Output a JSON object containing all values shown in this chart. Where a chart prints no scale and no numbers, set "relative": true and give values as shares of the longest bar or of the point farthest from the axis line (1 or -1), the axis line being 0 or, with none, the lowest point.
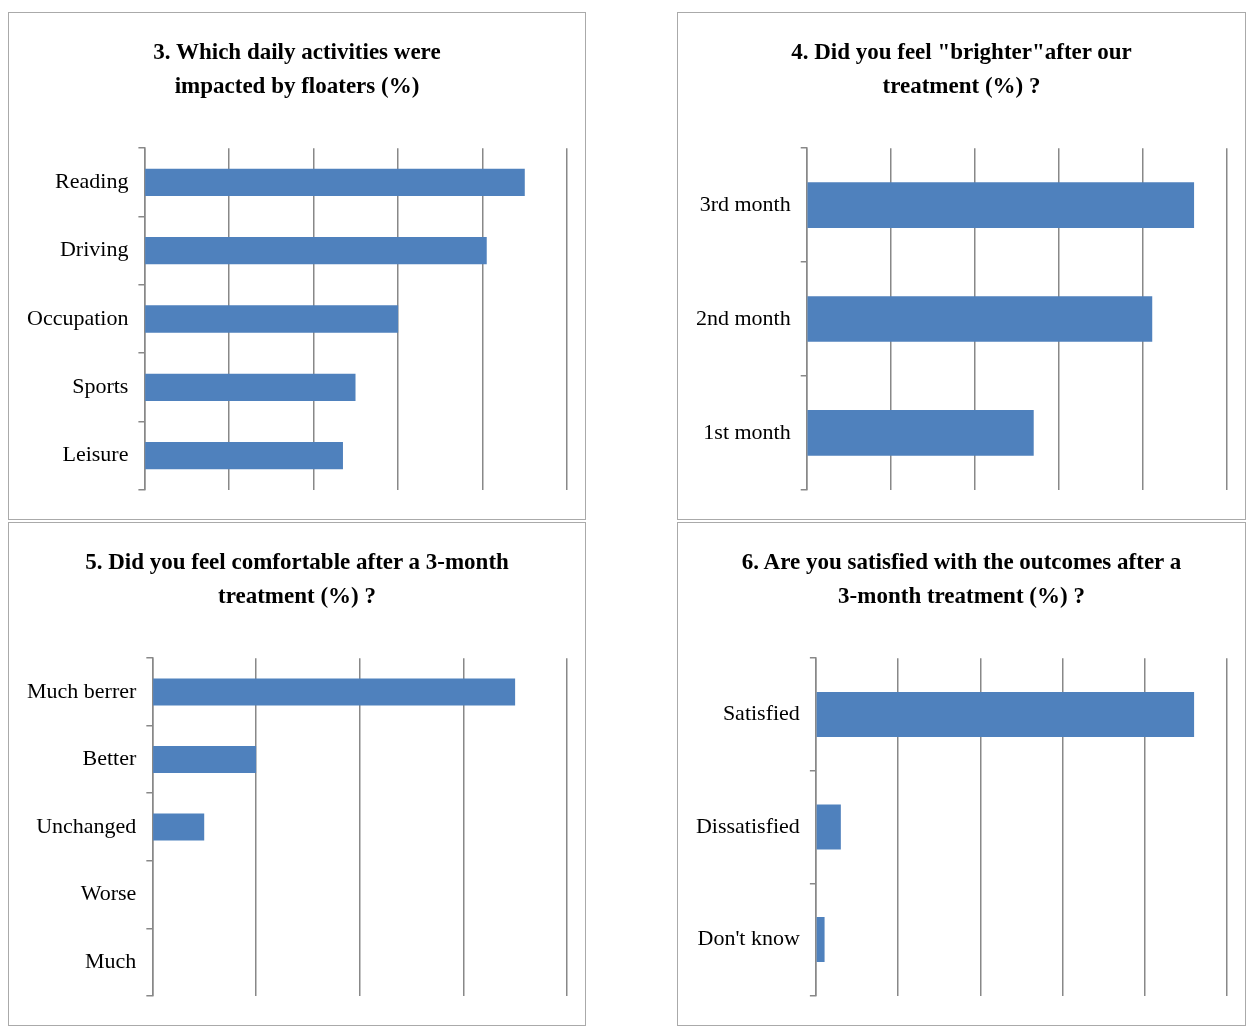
{
  "chart_data": [
    {
      "type": "bar",
      "orientation": "horizontal",
      "relative": true,
      "grid": "x",
      "title": "3. Which daily activities were impacted by floaters (%)",
      "categories": [
        "Reading",
        "Driving",
        "Occupation",
        "Sports",
        "Leisure"
      ],
      "values": [
        1,
        0.9,
        0.667,
        0.555,
        0.522
      ],
      "color": "#4f81bd"
    },
    {
      "type": "bar",
      "orientation": "horizontal",
      "relative": true,
      "grid": "x",
      "title": "4. Did you feel \"brighter\"after our treatment (%) ?",
      "categories": [
        "3rd month",
        "2nd month",
        "1st month"
      ],
      "values": [
        1,
        0.892,
        0.586
      ],
      "color": "#4f81bd"
    },
    {
      "type": "bar",
      "orientation": "horizontal",
      "relative": true,
      "grid": "x",
      "title": "5. Did you feel comfortable after a 3-month treatment (%) ?",
      "categories": [
        "Much berrer",
        "Better",
        "Unchanged",
        "Worse",
        "Much"
      ],
      "values": [
        1,
        0.286,
        0.143,
        0,
        0
      ],
      "color": "#4f81bd"
    },
    {
      "type": "bar",
      "orientation": "horizontal",
      "relative": true,
      "grid": "x",
      "title": "6. Are you satisfied with the outcomes after a 3-month treatment (%) ?",
      "categories": [
        "Satisfied",
        "Dissatisfied",
        "Don't know"
      ],
      "values": [
        1,
        0.066,
        0.023
      ],
      "color": "#4f81bd"
    }
  ]
}
